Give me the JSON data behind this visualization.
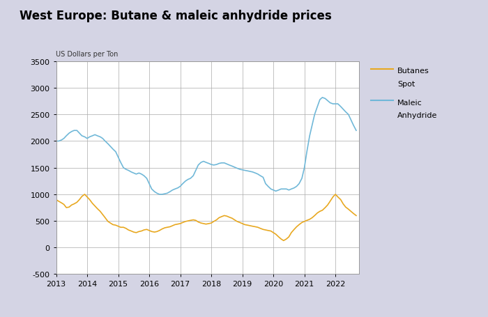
{
  "title": "West Europe: Butane & maleic anhydride prices",
  "ylabel": "US Dollars per Ton",
  "background_color": "#d4d4e4",
  "plot_background": "#ffffff",
  "ylim": [
    -500,
    3500
  ],
  "yticks": [
    -500,
    0,
    500,
    1000,
    1500,
    2000,
    2500,
    3000,
    3500
  ],
  "xlabel_years": [
    2013,
    2014,
    2015,
    2016,
    2017,
    2018,
    2019,
    2020,
    2021,
    2022
  ],
  "butane_color": "#e8a820",
  "maleic_color": "#70b8d8",
  "butane_label_line1": "Butanes",
  "butane_label_line2": "Spot",
  "maleic_label_line1": "Maleic",
  "maleic_label_line2": "Anhydride",
  "butane_x": [
    2013.0,
    2013.08,
    2013.17,
    2013.25,
    2013.33,
    2013.42,
    2013.5,
    2013.58,
    2013.67,
    2013.75,
    2013.83,
    2013.92,
    2014.0,
    2014.08,
    2014.17,
    2014.25,
    2014.33,
    2014.42,
    2014.5,
    2014.58,
    2014.67,
    2014.75,
    2014.83,
    2014.92,
    2015.0,
    2015.08,
    2015.17,
    2015.25,
    2015.33,
    2015.42,
    2015.5,
    2015.58,
    2015.67,
    2015.75,
    2015.83,
    2015.92,
    2016.0,
    2016.08,
    2016.17,
    2016.25,
    2016.33,
    2016.42,
    2016.5,
    2016.58,
    2016.67,
    2016.75,
    2016.83,
    2016.92,
    2017.0,
    2017.08,
    2017.17,
    2017.25,
    2017.33,
    2017.42,
    2017.5,
    2017.58,
    2017.67,
    2017.75,
    2017.83,
    2017.92,
    2018.0,
    2018.08,
    2018.17,
    2018.25,
    2018.33,
    2018.42,
    2018.5,
    2018.58,
    2018.67,
    2018.75,
    2018.83,
    2018.92,
    2019.0,
    2019.08,
    2019.17,
    2019.25,
    2019.33,
    2019.42,
    2019.5,
    2019.58,
    2019.67,
    2019.75,
    2019.83,
    2019.92,
    2020.0,
    2020.08,
    2020.17,
    2020.25,
    2020.33,
    2020.42,
    2020.5,
    2020.58,
    2020.67,
    2020.75,
    2020.83,
    2020.92,
    2021.0,
    2021.08,
    2021.17,
    2021.25,
    2021.33,
    2021.42,
    2021.5,
    2021.58,
    2021.67,
    2021.75,
    2021.83,
    2021.92,
    2022.0,
    2022.08,
    2022.17,
    2022.25,
    2022.33,
    2022.42,
    2022.5,
    2022.58,
    2022.67
  ],
  "butane_y": [
    900,
    870,
    840,
    810,
    750,
    760,
    800,
    820,
    850,
    900,
    960,
    1000,
    950,
    900,
    830,
    780,
    730,
    680,
    620,
    560,
    490,
    460,
    430,
    420,
    400,
    380,
    380,
    360,
    330,
    310,
    290,
    280,
    300,
    310,
    330,
    340,
    320,
    300,
    290,
    300,
    320,
    350,
    370,
    380,
    390,
    410,
    430,
    440,
    450,
    470,
    490,
    500,
    510,
    520,
    510,
    480,
    460,
    450,
    440,
    450,
    460,
    490,
    520,
    560,
    580,
    600,
    590,
    570,
    550,
    520,
    490,
    470,
    450,
    430,
    420,
    410,
    400,
    390,
    380,
    360,
    340,
    330,
    320,
    310,
    280,
    250,
    200,
    160,
    130,
    160,
    200,
    280,
    340,
    390,
    430,
    470,
    490,
    510,
    530,
    560,
    600,
    650,
    680,
    700,
    750,
    800,
    870,
    950,
    1000,
    950,
    900,
    820,
    760,
    720,
    680,
    640,
    600
  ],
  "maleic_x": [
    2013.0,
    2013.08,
    2013.17,
    2013.25,
    2013.33,
    2013.42,
    2013.5,
    2013.58,
    2013.67,
    2013.75,
    2013.83,
    2013.92,
    2014.0,
    2014.08,
    2014.17,
    2014.25,
    2014.33,
    2014.42,
    2014.5,
    2014.58,
    2014.67,
    2014.75,
    2014.83,
    2014.92,
    2015.0,
    2015.08,
    2015.17,
    2015.25,
    2015.33,
    2015.42,
    2015.5,
    2015.58,
    2015.67,
    2015.75,
    2015.83,
    2015.92,
    2016.0,
    2016.08,
    2016.17,
    2016.25,
    2016.33,
    2016.42,
    2016.5,
    2016.58,
    2016.67,
    2016.75,
    2016.83,
    2016.92,
    2017.0,
    2017.08,
    2017.17,
    2017.25,
    2017.33,
    2017.42,
    2017.5,
    2017.58,
    2017.67,
    2017.75,
    2017.83,
    2017.92,
    2018.0,
    2018.08,
    2018.17,
    2018.25,
    2018.33,
    2018.42,
    2018.5,
    2018.58,
    2018.67,
    2018.75,
    2018.83,
    2018.92,
    2019.0,
    2019.08,
    2019.17,
    2019.25,
    2019.33,
    2019.42,
    2019.5,
    2019.58,
    2019.67,
    2019.75,
    2019.83,
    2019.92,
    2020.0,
    2020.08,
    2020.17,
    2020.25,
    2020.33,
    2020.42,
    2020.5,
    2020.58,
    2020.67,
    2020.75,
    2020.83,
    2020.92,
    2021.0,
    2021.08,
    2021.17,
    2021.25,
    2021.33,
    2021.42,
    2021.5,
    2021.58,
    2021.67,
    2021.75,
    2021.83,
    2021.92,
    2022.0,
    2022.08,
    2022.17,
    2022.25,
    2022.33,
    2022.42,
    2022.5,
    2022.58,
    2022.67
  ],
  "maleic_y": [
    2000,
    2000,
    2020,
    2050,
    2100,
    2150,
    2180,
    2200,
    2200,
    2150,
    2100,
    2080,
    2050,
    2080,
    2100,
    2120,
    2100,
    2080,
    2050,
    2000,
    1950,
    1900,
    1850,
    1800,
    1700,
    1600,
    1500,
    1470,
    1450,
    1420,
    1400,
    1380,
    1400,
    1380,
    1350,
    1300,
    1200,
    1100,
    1050,
    1020,
    1000,
    1000,
    1010,
    1020,
    1050,
    1080,
    1100,
    1120,
    1150,
    1200,
    1250,
    1280,
    1300,
    1350,
    1450,
    1550,
    1600,
    1620,
    1600,
    1580,
    1560,
    1550,
    1560,
    1580,
    1590,
    1590,
    1570,
    1550,
    1530,
    1510,
    1490,
    1470,
    1460,
    1450,
    1440,
    1430,
    1420,
    1400,
    1380,
    1350,
    1320,
    1200,
    1150,
    1100,
    1080,
    1060,
    1080,
    1100,
    1100,
    1100,
    1080,
    1100,
    1120,
    1150,
    1200,
    1300,
    1500,
    1800,
    2100,
    2300,
    2500,
    2650,
    2780,
    2820,
    2800,
    2760,
    2720,
    2700,
    2700,
    2700,
    2650,
    2600,
    2550,
    2500,
    2400,
    2300,
    2200
  ]
}
